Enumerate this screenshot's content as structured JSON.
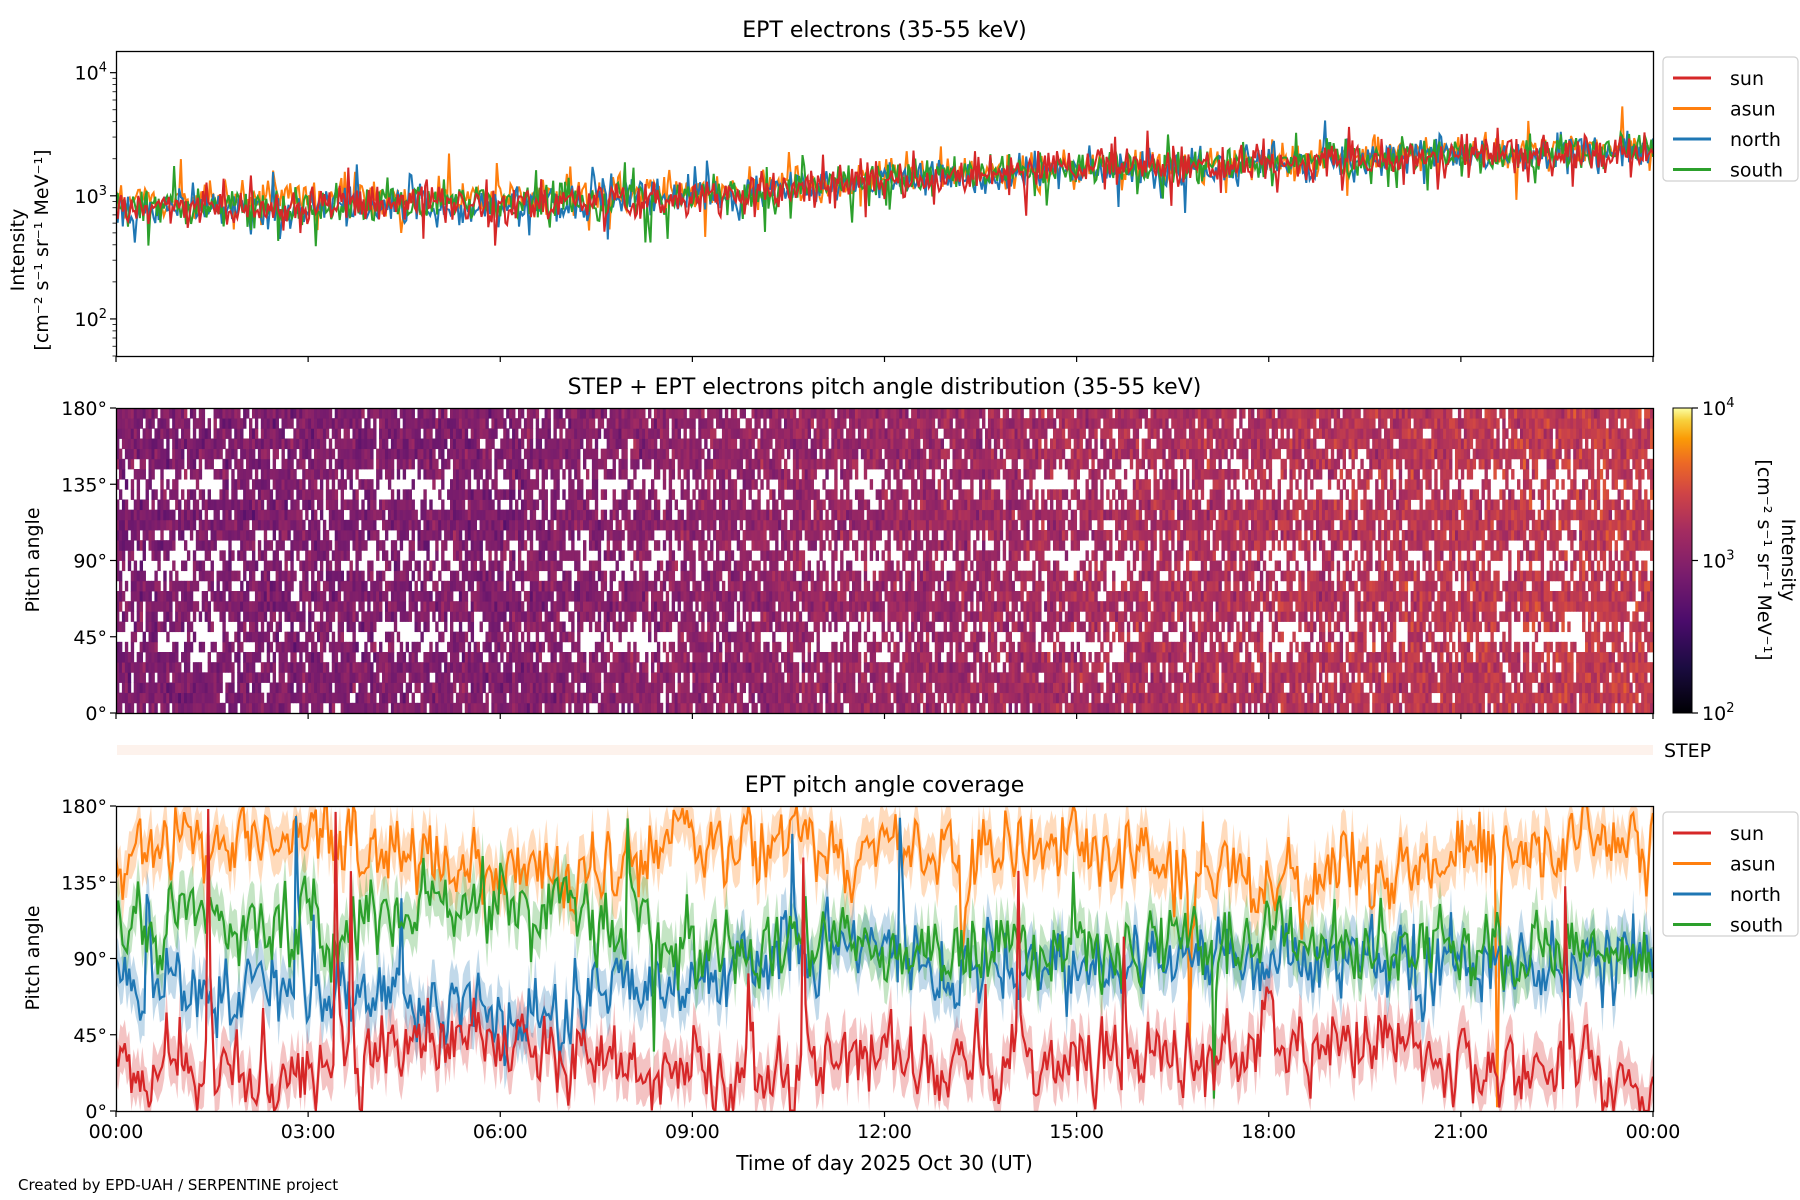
{
  "footer": "Created by EPD-UAH / SERPENTINE project",
  "chart_data": [
    {
      "type": "line",
      "title": "EPT electrons (35-55 keV)",
      "ylabel": "Intensity",
      "ylabel_units": "[cm⁻² s⁻¹ sr⁻¹ MeV⁻¹]",
      "yscale": "log",
      "ylim": [
        50,
        15000
      ],
      "y_ticks": [
        {
          "value": 100,
          "base": "10",
          "exp": "2"
        },
        {
          "value": 1000,
          "base": "10",
          "exp": "3"
        },
        {
          "value": 10000,
          "base": "10",
          "exp": "4"
        }
      ],
      "legend_position": "outside-right",
      "grid": false,
      "series": [
        {
          "name": "sun",
          "color": "#d62728",
          "x": [
            "00:00",
            "03:00",
            "06:00",
            "09:00",
            "12:00",
            "15:00",
            "18:00",
            "21:00",
            "24:00"
          ],
          "values": [
            800,
            830,
            880,
            950,
            1300,
            1650,
            1850,
            2150,
            2300
          ]
        },
        {
          "name": "asun",
          "color": "#ff7f0e",
          "x": [
            "00:00",
            "03:00",
            "06:00",
            "09:00",
            "12:00",
            "15:00",
            "18:00",
            "21:00",
            "24:00"
          ],
          "values": [
            900,
            960,
            1000,
            1060,
            1400,
            1700,
            1900,
            2200,
            2400
          ]
        },
        {
          "name": "north",
          "color": "#1f77b4",
          "x": [
            "00:00",
            "03:00",
            "06:00",
            "09:00",
            "12:00",
            "15:00",
            "18:00",
            "21:00",
            "24:00"
          ],
          "values": [
            780,
            820,
            870,
            960,
            1280,
            1600,
            1820,
            2100,
            2300
          ]
        },
        {
          "name": "south",
          "color": "#2ca02c",
          "x": [
            "00:00",
            "03:00",
            "06:00",
            "09:00",
            "12:00",
            "15:00",
            "18:00",
            "21:00",
            "24:00"
          ],
          "values": [
            800,
            850,
            900,
            990,
            1330,
            1680,
            1880,
            2180,
            2350
          ]
        }
      ]
    },
    {
      "type": "heatmap",
      "title": "STEP + EPT electrons pitch angle distribution (35-55 keV)",
      "ylabel": "Pitch angle",
      "ylim": [
        0,
        180
      ],
      "y_ticks": [
        "0°",
        "45°",
        "90°",
        "135°",
        "180°"
      ],
      "colorscale": "inferno",
      "colorbar": {
        "label": "Intensity",
        "units": "[cm⁻² s⁻¹ sr⁻¹ MeV⁻¹]",
        "scale": "log",
        "range": [
          100,
          10000
        ],
        "ticks": [
          {
            "value": 100,
            "base": "10",
            "exp": "2"
          },
          {
            "value": 1000,
            "base": "10",
            "exp": "3"
          },
          {
            "value": 10000,
            "base": "10",
            "exp": "4"
          }
        ]
      },
      "intensity_trend_x": [
        "00:00",
        "06:00",
        "12:00",
        "18:00",
        "24:00"
      ],
      "intensity_trend": [
        850,
        900,
        1300,
        1850,
        2300
      ],
      "step_label": "STEP"
    },
    {
      "type": "line",
      "title": "EPT pitch angle coverage",
      "ylabel": "Pitch angle",
      "xlabel": "Time of day 2025 Oct 30 (UT)",
      "ylim": [
        0,
        180
      ],
      "y_ticks": [
        "0°",
        "45°",
        "90°",
        "135°",
        "180°"
      ],
      "x_ticks": [
        "00:00",
        "03:00",
        "06:00",
        "09:00",
        "12:00",
        "15:00",
        "18:00",
        "21:00",
        "00:00"
      ],
      "legend_position": "outside-right",
      "grid": false,
      "series": [
        {
          "name": "sun",
          "color": "#d62728",
          "x": [
            "00:00",
            "03:00",
            "06:00",
            "09:00",
            "12:00",
            "15:00",
            "18:00",
            "21:00",
            "24:00"
          ],
          "values": [
            25,
            20,
            45,
            20,
            30,
            25,
            45,
            30,
            20
          ]
        },
        {
          "name": "asun",
          "color": "#ff7f0e",
          "x": [
            "00:00",
            "03:00",
            "06:00",
            "09:00",
            "12:00",
            "15:00",
            "18:00",
            "21:00",
            "24:00"
          ],
          "values": [
            155,
            160,
            135,
            160,
            150,
            155,
            135,
            150,
            160
          ]
        },
        {
          "name": "north",
          "color": "#1f77b4",
          "x": [
            "00:00",
            "03:00",
            "06:00",
            "09:00",
            "12:00",
            "15:00",
            "18:00",
            "21:00",
            "24:00"
          ],
          "values": [
            75,
            70,
            55,
            80,
            90,
            85,
            90,
            85,
            90
          ]
        },
        {
          "name": "south",
          "color": "#2ca02c",
          "x": [
            "00:00",
            "03:00",
            "06:00",
            "09:00",
            "12:00",
            "15:00",
            "18:00",
            "21:00",
            "24:00"
          ],
          "values": [
            105,
            110,
            125,
            100,
            95,
            95,
            100,
            95,
            90
          ]
        }
      ]
    }
  ]
}
